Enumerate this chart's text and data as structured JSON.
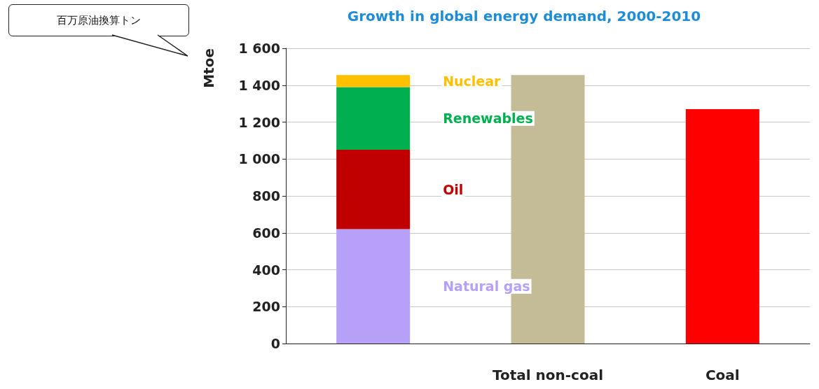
{
  "chart_data": {
    "type": "bar",
    "title": "Growth in global energy demand, 2000-2010",
    "ylabel": "Mtoe",
    "annotations": [
      "百万原油換算トン"
    ],
    "categories": [
      null,
      "Total non-coal",
      "Coal"
    ],
    "stacked": true,
    "series": [
      {
        "name": "Natural gas",
        "color": "#b7a0f8",
        "values": [
          620,
          null,
          null
        ]
      },
      {
        "name": "Oil",
        "color": "#c00000",
        "values": [
          430,
          null,
          null
        ]
      },
      {
        "name": "Renewables",
        "color": "#00b050",
        "values": [
          340,
          null,
          null
        ]
      },
      {
        "name": "Nuclear",
        "color": "#ffc000",
        "values": [
          65,
          null,
          null
        ]
      },
      {
        "color": "#c4bc96",
        "values": [
          null,
          1455,
          null
        ]
      },
      {
        "color": "#ff0000",
        "values": [
          null,
          null,
          1270
        ]
      }
    ],
    "ylim": [
      0,
      1600
    ],
    "yticks": [
      0,
      200,
      400,
      600,
      800,
      {
        "value": 1000,
        "label": "1 000"
      },
      {
        "value": 1200,
        "label": "1 200"
      },
      {
        "value": 1400,
        "label": "1 400"
      },
      {
        "value": 1600,
        "label": "1 600"
      }
    ],
    "grid": "y",
    "legend": false
  }
}
